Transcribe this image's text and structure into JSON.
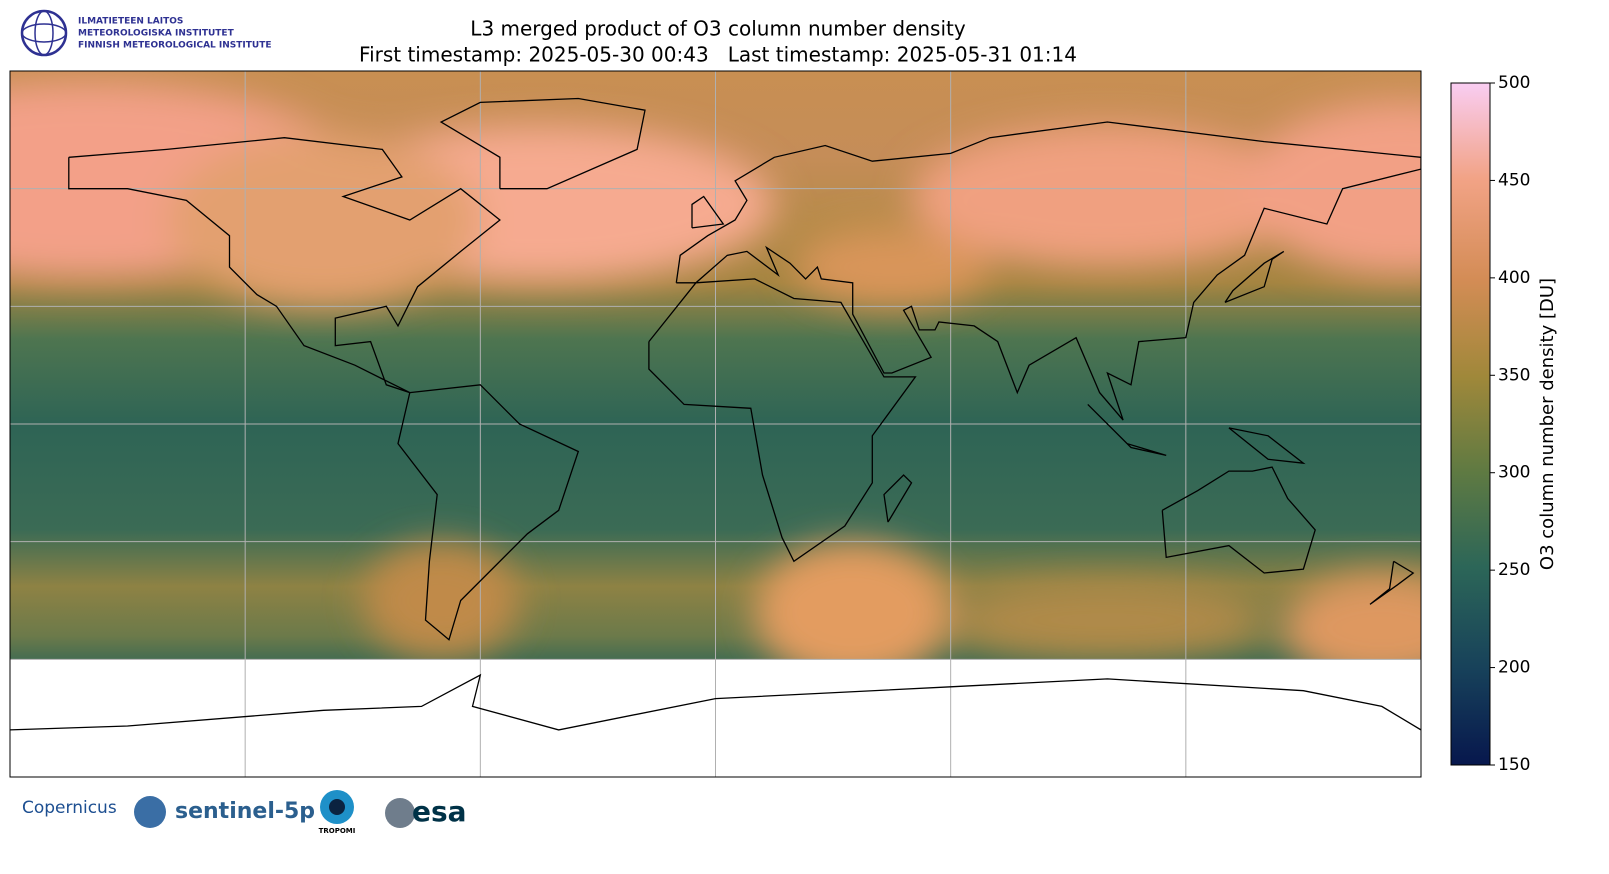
{
  "header": {
    "logo_lines": [
      "ILMATIETEEN LAITOS",
      "METEOROLOGISKA INSTITUTET",
      "FINNISH METEOROLOGICAL INSTITUTE"
    ],
    "title": "L3 merged product of O3 column number density",
    "subtitle": "First timestamp: 2025-05-30 00:43   Last timestamp: 2025-05-31 01:14"
  },
  "colorbar": {
    "label": "O3 column number density [DU]",
    "lim": [
      150,
      500
    ],
    "ticks": [
      150,
      200,
      250,
      300,
      350,
      400,
      450,
      500
    ]
  },
  "footer": {
    "logos": [
      "Copernicus",
      "sentinel-5p",
      "TROPOMI",
      "esa"
    ]
  }
}
